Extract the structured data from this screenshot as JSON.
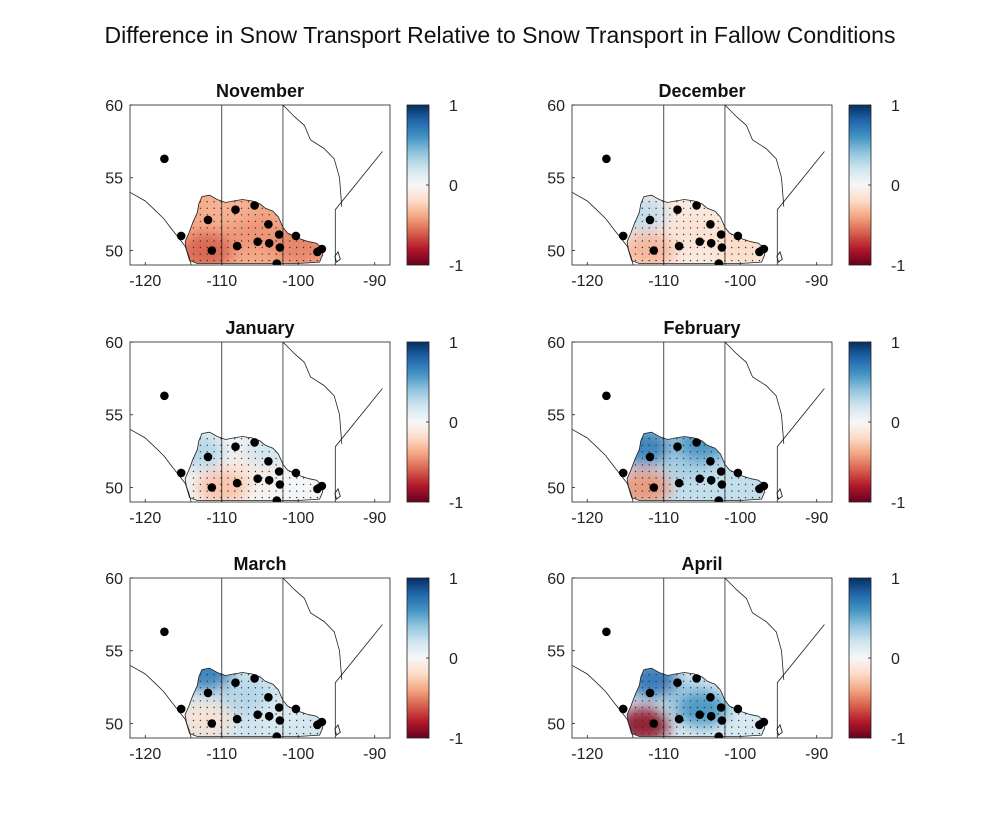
{
  "figure": {
    "title": "Difference in Snow Transport Relative to Snow Transport in Fallow Conditions"
  },
  "axes": {
    "x_ticks": [
      "-120",
      "-110",
      "-100",
      "-90"
    ],
    "y_ticks": [
      "60",
      "55",
      "50"
    ],
    "xlim": [
      -122,
      -88
    ],
    "ylim": [
      49,
      60
    ],
    "colorbar_ticks": [
      "1",
      "0",
      "-1"
    ],
    "colorbar_range": [
      -1,
      1
    ],
    "colormap": [
      "#67001f",
      "#b2182b",
      "#d6604d",
      "#f4a582",
      "#fddbc7",
      "#f7f7f7",
      "#d1e5f0",
      "#92c5de",
      "#4393c3",
      "#2166ac",
      "#053061"
    ]
  },
  "stations": [
    {
      "lon": -117.5,
      "lat": 56.3
    },
    {
      "lon": -115.3,
      "lat": 51.0
    },
    {
      "lon": -111.8,
      "lat": 52.1
    },
    {
      "lon": -111.3,
      "lat": 50.0
    },
    {
      "lon": -108.2,
      "lat": 52.8
    },
    {
      "lon": -108.0,
      "lat": 50.3
    },
    {
      "lon": -105.7,
      "lat": 53.1
    },
    {
      "lon": -105.3,
      "lat": 50.6
    },
    {
      "lon": -103.9,
      "lat": 51.8
    },
    {
      "lon": -103.8,
      "lat": 50.5
    },
    {
      "lon": -102.8,
      "lat": 49.1
    },
    {
      "lon": -102.5,
      "lat": 51.1
    },
    {
      "lon": -102.4,
      "lat": 50.2
    },
    {
      "lon": -100.3,
      "lat": 51.0
    },
    {
      "lon": -97.5,
      "lat": 49.9
    },
    {
      "lon": -96.9,
      "lat": 50.1
    }
  ],
  "panels": [
    {
      "month": "November",
      "regions": [
        {
          "lon": -106,
          "lat": 51.3,
          "value": -0.45
        },
        {
          "lon": -112,
          "lat": 50.0,
          "value": -0.6
        },
        {
          "lon": -100,
          "lat": 50.3,
          "value": -0.5
        },
        {
          "lon": -109,
          "lat": 53.0,
          "value": -0.35
        }
      ]
    },
    {
      "month": "December",
      "regions": [
        {
          "lon": -106,
          "lat": 51.3,
          "value": -0.15
        },
        {
          "lon": -112,
          "lat": 50.0,
          "value": -0.35
        },
        {
          "lon": -113,
          "lat": 52.5,
          "value": 0.25
        },
        {
          "lon": -100,
          "lat": 50.3,
          "value": -0.2
        }
      ]
    },
    {
      "month": "January",
      "regions": [
        {
          "lon": -106,
          "lat": 51.3,
          "value": -0.1
        },
        {
          "lon": -110,
          "lat": 50.0,
          "value": -0.3
        },
        {
          "lon": -113,
          "lat": 52.5,
          "value": 0.3
        },
        {
          "lon": -104,
          "lat": 52.6,
          "value": 0.2
        }
      ]
    },
    {
      "month": "February",
      "regions": [
        {
          "lon": -107,
          "lat": 51.8,
          "value": 0.35
        },
        {
          "lon": -112.5,
          "lat": 50.0,
          "value": -0.45
        },
        {
          "lon": -112.5,
          "lat": 52.8,
          "value": 0.7
        },
        {
          "lon": -105,
          "lat": 53.0,
          "value": 0.6
        }
      ]
    },
    {
      "month": "March",
      "regions": [
        {
          "lon": -107,
          "lat": 51.8,
          "value": 0.3
        },
        {
          "lon": -112,
          "lat": 53.5,
          "value": 0.7
        },
        {
          "lon": -112,
          "lat": 50.2,
          "value": -0.15
        },
        {
          "lon": -102,
          "lat": 50.5,
          "value": 0.15
        }
      ]
    },
    {
      "month": "April",
      "regions": [
        {
          "lon": -107,
          "lat": 51.8,
          "value": 0.35
        },
        {
          "lon": -112.6,
          "lat": 49.9,
          "value": -0.9
        },
        {
          "lon": -111.5,
          "lat": 53.0,
          "value": 0.75
        },
        {
          "lon": -105,
          "lat": 51.0,
          "value": 0.6
        }
      ]
    }
  ]
}
